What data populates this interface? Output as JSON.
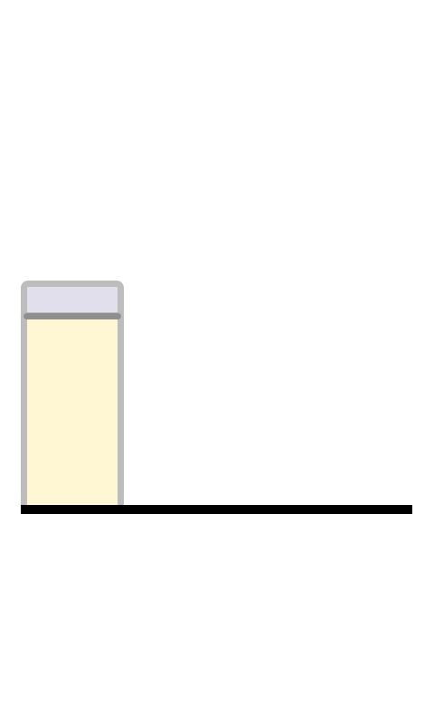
{
  "scene": {
    "background_color": "#ffffff",
    "tower": {
      "blocks": [
        {
          "type": "cap",
          "fill_color": "#e2dfec",
          "outline_color": "#bdbdbd"
        },
        {
          "type": "body",
          "fill_color": "#fff7d3",
          "outline_color": "#bdbdbd"
        }
      ],
      "seam_color": "#8f8f8f"
    },
    "ground": {
      "color": "#000000"
    }
  }
}
